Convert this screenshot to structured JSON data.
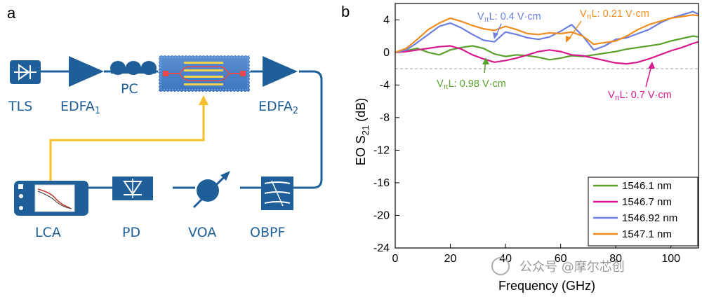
{
  "panels": {
    "a": "a",
    "b": "b"
  },
  "setup": {
    "tls": "TLS",
    "edfa1": "EDFA",
    "edfa1_sub": "1",
    "pc": "PC",
    "edfa2": "EDFA",
    "edfa2_sub": "2",
    "lca": "LCA",
    "pd": "PD",
    "voa": "VOA",
    "obpf": "OBPF"
  },
  "colors": {
    "component": "#1f5f99",
    "rf_line": "#f5c02c",
    "green": "#5aa02c",
    "magenta": "#d6198c",
    "blue": "#6a7fe0",
    "orange": "#f08c1e"
  },
  "watermark": "公众号 @摩尔芯创",
  "annotations": {
    "green": {
      "prefix": "V",
      "sub": "π",
      "rest": "L: 0.98 V·cm"
    },
    "blue": {
      "prefix": "V",
      "sub": "π",
      "rest": "L: 0.4 V·cm"
    },
    "orange": {
      "prefix": "V",
      "sub": "π",
      "rest": "L: 0.21 V·cm"
    },
    "magenta": {
      "prefix": "V",
      "sub": "π",
      "rest": "L: 0.7 V·cm"
    }
  },
  "chart_data": {
    "type": "line",
    "xlabel": "Frequency (GHz)",
    "ylabel_main": "EO S",
    "ylabel_sub": "21",
    "ylabel_tail": " (dB)",
    "xlim": [
      0,
      110
    ],
    "ylim": [
      -24,
      6
    ],
    "xticks": [
      0,
      20,
      40,
      60,
      80,
      100
    ],
    "yticks": [
      4,
      0,
      -4,
      -8,
      -12,
      -16,
      -20,
      -24
    ],
    "reference_line_y": -2,
    "legend_position": "bottom-right",
    "series": [
      {
        "name": "1546.1 nm",
        "color": "#5aa02c",
        "x": [
          0,
          4,
          8,
          12,
          16,
          20,
          24,
          28,
          32,
          36,
          40,
          44,
          48,
          52,
          56,
          60,
          64,
          68,
          72,
          76,
          80,
          84,
          88,
          92,
          96,
          100,
          104,
          108,
          110
        ],
        "y": [
          0,
          0.2,
          0.5,
          0,
          -0.3,
          0.3,
          0.6,
          0.8,
          0.5,
          -0.2,
          -0.5,
          -0.3,
          -0.4,
          -0.6,
          -0.9,
          -0.7,
          -0.4,
          -0.5,
          -0.3,
          -0.1,
          0.1,
          0.4,
          0.6,
          0.8,
          1.0,
          1.4,
          1.7,
          2.0,
          1.9
        ]
      },
      {
        "name": "1546.7 nm",
        "color": "#d6198c",
        "x": [
          0,
          4,
          8,
          12,
          16,
          20,
          24,
          28,
          32,
          36,
          40,
          44,
          48,
          52,
          56,
          60,
          64,
          68,
          72,
          76,
          80,
          84,
          88,
          92,
          96,
          100,
          104,
          108,
          110
        ],
        "y": [
          0,
          0.1,
          0.3,
          0.5,
          0.7,
          0.8,
          0.4,
          -0.3,
          -0.8,
          -1.2,
          -1.0,
          -0.7,
          -0.3,
          0.1,
          0.3,
          0.1,
          -0.3,
          -0.4,
          -0.7,
          -1.0,
          -1.3,
          -1.4,
          -1.2,
          -0.8,
          -0.3,
          0.2,
          0.6,
          1.1,
          1.3
        ]
      },
      {
        "name": "1546.92 nm",
        "color": "#6a7fe0",
        "x": [
          0,
          4,
          8,
          12,
          16,
          20,
          24,
          28,
          32,
          36,
          40,
          44,
          48,
          52,
          56,
          60,
          64,
          68,
          72,
          76,
          80,
          84,
          88,
          92,
          96,
          100,
          104,
          108,
          110
        ],
        "y": [
          0,
          0.3,
          1.2,
          2.2,
          3.2,
          3.6,
          3.0,
          2.2,
          1.5,
          1.3,
          2.5,
          2.2,
          1.8,
          1.6,
          1.9,
          2.6,
          3.4,
          2.0,
          0.3,
          0.8,
          1.6,
          1.8,
          2.3,
          2.8,
          3.6,
          4.2,
          4.6,
          5.0,
          4.7
        ]
      },
      {
        "name": "1547.1 nm",
        "color": "#f08c1e",
        "x": [
          0,
          4,
          8,
          12,
          16,
          20,
          24,
          28,
          32,
          36,
          40,
          44,
          48,
          52,
          56,
          60,
          64,
          68,
          72,
          76,
          80,
          84,
          88,
          92,
          96,
          100,
          104,
          108,
          110
        ],
        "y": [
          0,
          0.5,
          1.6,
          2.8,
          3.6,
          4.2,
          3.8,
          3.3,
          2.9,
          2.7,
          3.2,
          2.8,
          2.3,
          2.2,
          2.4,
          2.3,
          2.5,
          2.0,
          1.0,
          1.2,
          1.4,
          2.0,
          2.8,
          3.4,
          3.8,
          4.2,
          4.4,
          4.6,
          4.5
        ]
      }
    ]
  }
}
